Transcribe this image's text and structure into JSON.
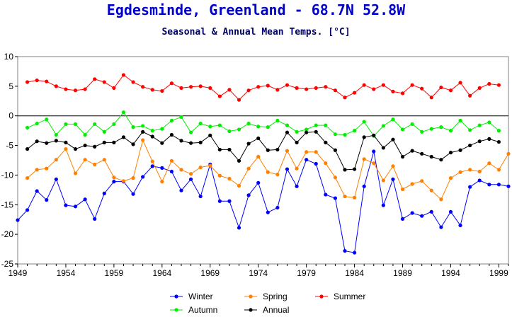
{
  "chart_data": {
    "type": "line",
    "title": "Egdesminde, Greenland - 68.7N 52.8W",
    "subtitle": "Seasonal & Annual Mean Temps.  [°C]",
    "xlabel": "",
    "ylabel": "",
    "xlim": [
      1949,
      2000
    ],
    "ylim": [
      -25,
      10
    ],
    "xticks": [
      1949,
      1954,
      1959,
      1964,
      1969,
      1974,
      1979,
      1984,
      1989,
      1994,
      1999
    ],
    "yticks": [
      10,
      5,
      0,
      -5,
      -10,
      -15,
      -20,
      -25
    ],
    "grid": false,
    "zero_line": true,
    "legend_position": "bottom",
    "years": [
      1949,
      1950,
      1951,
      1952,
      1953,
      1954,
      1955,
      1956,
      1957,
      1958,
      1959,
      1960,
      1961,
      1962,
      1963,
      1964,
      1965,
      1966,
      1967,
      1968,
      1969,
      1970,
      1971,
      1972,
      1973,
      1974,
      1975,
      1976,
      1977,
      1978,
      1979,
      1980,
      1981,
      1982,
      1983,
      1984,
      1985,
      1986,
      1987,
      1988,
      1989,
      1990,
      1991,
      1992,
      1993,
      1994,
      1995,
      1996,
      1997,
      1998,
      1999,
      2000
    ],
    "series": [
      {
        "name": "Winter",
        "color": "#0000ff",
        "values": [
          -17.6,
          -15.9,
          -12.7,
          -14.2,
          -10.7,
          -15.1,
          -15.3,
          -14.1,
          -17.4,
          -13.1,
          -11.1,
          -11.1,
          -13.2,
          -10.3,
          -8.5,
          -8.8,
          -9.4,
          -12.6,
          -10.7,
          -13.6,
          -8.2,
          -14.4,
          -14.4,
          -18.9,
          -13.4,
          -11.3,
          -16.3,
          -15.5,
          -9.0,
          -11.9,
          -7.4,
          -8.1,
          -13.3,
          -13.9,
          -22.8,
          -23.1,
          -11.9,
          -6.0,
          -15.1,
          -10.7,
          -17.4,
          -16.4,
          -16.9,
          -16.2,
          -18.8,
          -16.2,
          -18.5,
          -12.0,
          -10.9,
          -11.6,
          -11.6,
          -11.9
        ]
      },
      {
        "name": "Spring",
        "color": "#ff8000",
        "values": [
          null,
          -10.5,
          -9.1,
          -8.9,
          -7.4,
          -5.6,
          -9.7,
          -7.4,
          -8.2,
          -7.4,
          -10.4,
          -11.0,
          -10.5,
          -4.1,
          -7.7,
          -11.1,
          -7.6,
          -9.1,
          -9.8,
          -8.7,
          -8.4,
          -10.1,
          -10.6,
          -11.8,
          -8.9,
          -6.9,
          -9.5,
          -9.9,
          -5.9,
          -8.9,
          -6.1,
          -6.1,
          -8.0,
          -10.4,
          -13.6,
          -13.8,
          -7.3,
          -8.0,
          -10.9,
          -8.5,
          -12.4,
          -11.5,
          -11.0,
          -12.6,
          -14.1,
          -10.5,
          -9.5,
          -9.1,
          -9.4,
          -8.0,
          -9.1,
          -6.4
        ]
      },
      {
        "name": "Summer",
        "color": "#ff0000",
        "values": [
          null,
          5.7,
          6.0,
          5.8,
          5.0,
          4.5,
          4.3,
          4.5,
          6.2,
          5.7,
          4.7,
          6.9,
          5.7,
          4.9,
          4.4,
          4.2,
          5.5,
          4.7,
          4.9,
          5.0,
          4.7,
          3.3,
          4.4,
          2.7,
          4.3,
          4.9,
          5.1,
          4.4,
          5.2,
          4.7,
          4.5,
          4.7,
          4.9,
          4.3,
          3.1,
          3.9,
          5.2,
          4.5,
          5.2,
          4.1,
          3.8,
          5.2,
          4.6,
          3.1,
          4.8,
          4.3,
          5.6,
          3.4,
          4.7,
          5.4,
          5.2,
          null
        ]
      },
      {
        "name": "Autumn",
        "color": "#00ee00",
        "values": [
          null,
          -2.0,
          -1.3,
          -0.6,
          -3.2,
          -1.4,
          -1.4,
          -3.2,
          -1.4,
          -2.7,
          -1.4,
          0.6,
          -1.9,
          -1.7,
          -2.5,
          -2.2,
          -0.8,
          -0.2,
          -2.8,
          -1.3,
          -1.8,
          -1.6,
          -2.6,
          -2.3,
          -1.3,
          -1.8,
          -1.9,
          -0.8,
          -1.6,
          -2.7,
          -2.3,
          -1.6,
          -1.6,
          -3.1,
          -3.2,
          -2.5,
          -1.0,
          -3.4,
          -1.7,
          -0.6,
          -2.3,
          -1.4,
          -2.7,
          -2.2,
          -1.9,
          -2.5,
          -0.8,
          -2.4,
          -1.6,
          -1.1,
          -2.5,
          null
        ]
      },
      {
        "name": "Annual",
        "color": "#000000",
        "values": [
          null,
          -5.6,
          -4.3,
          -4.6,
          -4.2,
          -4.5,
          -5.6,
          -5.0,
          -5.2,
          -4.5,
          -4.5,
          -3.6,
          -4.8,
          -2.7,
          -3.5,
          -4.6,
          -3.2,
          -4.2,
          -4.6,
          -4.5,
          -3.3,
          -5.7,
          -5.7,
          -7.6,
          -4.7,
          -3.8,
          -5.8,
          -5.7,
          -2.8,
          -4.5,
          -2.8,
          -2.7,
          -4.5,
          -5.8,
          -9.1,
          -9.0,
          -3.6,
          -3.3,
          -5.4,
          -4.0,
          -6.9,
          -5.9,
          -6.4,
          -6.9,
          -7.4,
          -6.2,
          -5.8,
          -5.0,
          -4.3,
          -3.9,
          -4.4,
          null
        ]
      }
    ]
  }
}
